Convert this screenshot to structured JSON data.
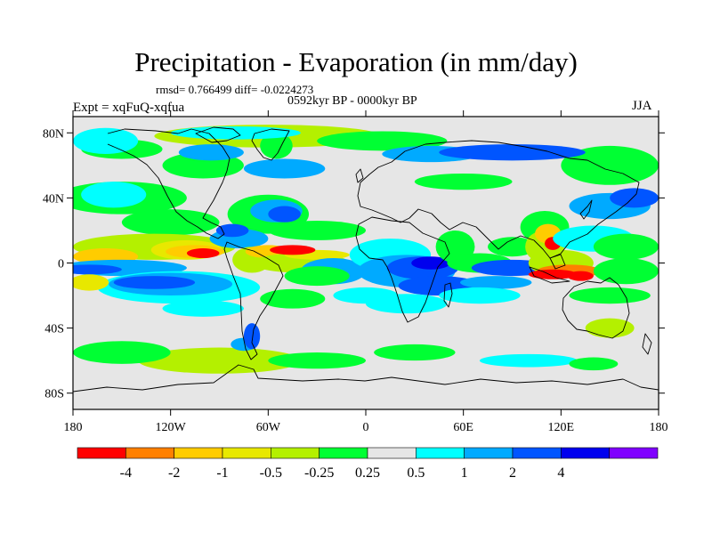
{
  "chart_data": {
    "type": "heatmap",
    "title": "Precipitation - Evaporation (in mm/day)",
    "stats_text": "rmsd= 0.766499 diff= -0.0224273",
    "period_text": "0592kyr BP - 0000kyr BP",
    "left_label": "Expt = xqFuQ-xqfua",
    "right_label": "JJA",
    "x_ticks": [
      "180",
      "120W",
      "60W",
      "0",
      "60E",
      "120E",
      "180"
    ],
    "x_tick_values": [
      -180,
      -120,
      -60,
      0,
      60,
      120,
      180
    ],
    "y_ticks": [
      "80N",
      "40N",
      "0",
      "40S",
      "80S"
    ],
    "y_tick_values": [
      80,
      40,
      0,
      -40,
      -80
    ],
    "xlim": [
      -180,
      180
    ],
    "ylim": [
      -90,
      90
    ],
    "colorbar": {
      "colors": [
        "#ff0000",
        "#ff8000",
        "#ffcc00",
        "#e8e800",
        "#b4f000",
        "#00ff33",
        "#e6e6e6",
        "#00ffff",
        "#00aaff",
        "#0055ff",
        "#0000ee",
        "#8000ff"
      ],
      "labels": [
        "-4",
        "-2",
        "-1",
        "-0.5",
        "-0.25",
        "0.25",
        "0.5",
        "1",
        "2",
        "4"
      ]
    },
    "regions": [
      {
        "lon": -60,
        "lat": 78,
        "rx": 70,
        "ry": 7,
        "c": 4
      },
      {
        "lon": 10,
        "lat": 75,
        "rx": 40,
        "ry": 6,
        "c": 5
      },
      {
        "lon": -150,
        "lat": 70,
        "rx": 25,
        "ry": 6,
        "c": 5
      },
      {
        "lon": -55,
        "lat": 72,
        "rx": 10,
        "ry": 8,
        "c": 5
      },
      {
        "lon": 150,
        "lat": 60,
        "rx": 30,
        "ry": 12,
        "c": 5
      },
      {
        "lon": -100,
        "lat": 60,
        "rx": 25,
        "ry": 8,
        "c": 5
      },
      {
        "lon": -160,
        "lat": 75,
        "rx": 20,
        "ry": 8,
        "c": 7
      },
      {
        "lon": -80,
        "lat": 80,
        "rx": 40,
        "ry": 4,
        "c": 7
      },
      {
        "lon": -50,
        "lat": 58,
        "rx": 25,
        "ry": 6,
        "c": 8
      },
      {
        "lon": 40,
        "lat": 67,
        "rx": 30,
        "ry": 5,
        "c": 8
      },
      {
        "lon": 90,
        "lat": 68,
        "rx": 45,
        "ry": 5,
        "c": 9
      },
      {
        "lon": -95,
        "lat": 68,
        "rx": 20,
        "ry": 5,
        "c": 8
      },
      {
        "lon": 60,
        "lat": 50,
        "rx": 30,
        "ry": 5,
        "c": 5
      },
      {
        "lon": -150,
        "lat": 40,
        "rx": 40,
        "ry": 10,
        "c": 5
      },
      {
        "lon": -120,
        "lat": 25,
        "rx": 30,
        "ry": 8,
        "c": 5
      },
      {
        "lon": -155,
        "lat": 42,
        "rx": 20,
        "ry": 8,
        "c": 7
      },
      {
        "lon": -60,
        "lat": 30,
        "rx": 25,
        "ry": 12,
        "c": 5
      },
      {
        "lon": -55,
        "lat": 32,
        "rx": 16,
        "ry": 7,
        "c": 8
      },
      {
        "lon": -50,
        "lat": 30,
        "rx": 10,
        "ry": 5,
        "c": 9
      },
      {
        "lon": -30,
        "lat": 20,
        "rx": 30,
        "ry": 6,
        "c": 5
      },
      {
        "lon": -130,
        "lat": 10,
        "rx": 50,
        "ry": 8,
        "c": 4
      },
      {
        "lon": -110,
        "lat": 8,
        "rx": 22,
        "ry": 6,
        "c": 3
      },
      {
        "lon": -105,
        "lat": 7,
        "rx": 18,
        "ry": 4,
        "c": 2
      },
      {
        "lon": -100,
        "lat": 6,
        "rx": 10,
        "ry": 3,
        "c": 0
      },
      {
        "lon": -160,
        "lat": 4,
        "rx": 20,
        "ry": 5,
        "c": 2
      },
      {
        "lon": -150,
        "lat": -3,
        "rx": 40,
        "ry": 5,
        "c": 8
      },
      {
        "lon": -170,
        "lat": -4,
        "rx": 20,
        "ry": 3,
        "c": 9
      },
      {
        "lon": -78,
        "lat": 15,
        "rx": 18,
        "ry": 6,
        "c": 8
      },
      {
        "lon": -82,
        "lat": 20,
        "rx": 10,
        "ry": 4,
        "c": 9
      },
      {
        "lon": -70,
        "lat": 2,
        "rx": 12,
        "ry": 8,
        "c": 4
      },
      {
        "lon": -60,
        "lat": 7,
        "rx": 14,
        "ry": 4,
        "c": 2
      },
      {
        "lon": -40,
        "lat": 0,
        "rx": 30,
        "ry": 6,
        "c": 4
      },
      {
        "lon": -30,
        "lat": 5,
        "rx": 20,
        "ry": 3,
        "c": 3
      },
      {
        "lon": -45,
        "lat": 8,
        "rx": 14,
        "ry": 3,
        "c": 0
      },
      {
        "lon": -20,
        "lat": -5,
        "rx": 20,
        "ry": 8,
        "c": 8
      },
      {
        "lon": -115,
        "lat": -15,
        "rx": 50,
        "ry": 10,
        "c": 7
      },
      {
        "lon": -120,
        "lat": -13,
        "rx": 38,
        "ry": 7,
        "c": 8
      },
      {
        "lon": -130,
        "lat": -12,
        "rx": 25,
        "ry": 4,
        "c": 9
      },
      {
        "lon": -170,
        "lat": -12,
        "rx": 12,
        "ry": 5,
        "c": 3
      },
      {
        "lon": -100,
        "lat": -28,
        "rx": 25,
        "ry": 5,
        "c": 7
      },
      {
        "lon": -45,
        "lat": -22,
        "rx": 20,
        "ry": 6,
        "c": 5
      },
      {
        "lon": -30,
        "lat": -8,
        "rx": 20,
        "ry": 6,
        "c": 5
      },
      {
        "lon": 15,
        "lat": 5,
        "rx": 25,
        "ry": 10,
        "c": 7
      },
      {
        "lon": 25,
        "lat": -5,
        "rx": 30,
        "ry": 10,
        "c": 8
      },
      {
        "lon": 35,
        "lat": -3,
        "rx": 22,
        "ry": 7,
        "c": 9
      },
      {
        "lon": 40,
        "lat": 0,
        "rx": 12,
        "ry": 4,
        "c": 10
      },
      {
        "lon": 45,
        "lat": -14,
        "rx": 25,
        "ry": 6,
        "c": 9
      },
      {
        "lon": 25,
        "lat": -25,
        "rx": 25,
        "ry": 6,
        "c": 7
      },
      {
        "lon": 0,
        "lat": -20,
        "rx": 20,
        "ry": 5,
        "c": 7
      },
      {
        "lon": 55,
        "lat": 10,
        "rx": 12,
        "ry": 10,
        "c": 5
      },
      {
        "lon": 70,
        "lat": 0,
        "rx": 20,
        "ry": 6,
        "c": 5
      },
      {
        "lon": 90,
        "lat": 10,
        "rx": 15,
        "ry": 6,
        "c": 5
      },
      {
        "lon": 90,
        "lat": -3,
        "rx": 25,
        "ry": 5,
        "c": 9
      },
      {
        "lon": 80,
        "lat": -12,
        "rx": 22,
        "ry": 4,
        "c": 8
      },
      {
        "lon": 70,
        "lat": -20,
        "rx": 25,
        "ry": 5,
        "c": 7
      },
      {
        "lon": 110,
        "lat": 22,
        "rx": 15,
        "ry": 10,
        "c": 5
      },
      {
        "lon": 110,
        "lat": 10,
        "rx": 12,
        "ry": 10,
        "c": 4
      },
      {
        "lon": 112,
        "lat": 18,
        "rx": 8,
        "ry": 6,
        "c": 2
      },
      {
        "lon": 115,
        "lat": 12,
        "rx": 5,
        "ry": 4,
        "c": 0
      },
      {
        "lon": 120,
        "lat": 0,
        "rx": 20,
        "ry": 8,
        "c": 4
      },
      {
        "lon": 125,
        "lat": -5,
        "rx": 20,
        "ry": 4,
        "c": 1
      },
      {
        "lon": 115,
        "lat": -7,
        "rx": 15,
        "ry": 3,
        "c": 0
      },
      {
        "lon": 132,
        "lat": -8,
        "rx": 8,
        "ry": 3,
        "c": 0
      },
      {
        "lon": 150,
        "lat": 35,
        "rx": 25,
        "ry": 8,
        "c": 8
      },
      {
        "lon": 165,
        "lat": 40,
        "rx": 15,
        "ry": 6,
        "c": 9
      },
      {
        "lon": 140,
        "lat": 15,
        "rx": 25,
        "ry": 8,
        "c": 7
      },
      {
        "lon": 160,
        "lat": 10,
        "rx": 20,
        "ry": 8,
        "c": 5
      },
      {
        "lon": 160,
        "lat": -5,
        "rx": 20,
        "ry": 8,
        "c": 5
      },
      {
        "lon": 150,
        "lat": -20,
        "rx": 25,
        "ry": 5,
        "c": 5
      },
      {
        "lon": 150,
        "lat": -40,
        "rx": 15,
        "ry": 6,
        "c": 4
      },
      {
        "lon": -90,
        "lat": -60,
        "rx": 50,
        "ry": 8,
        "c": 4
      },
      {
        "lon": -150,
        "lat": -55,
        "rx": 30,
        "ry": 7,
        "c": 5
      },
      {
        "lon": -30,
        "lat": -60,
        "rx": 30,
        "ry": 5,
        "c": 5
      },
      {
        "lon": -75,
        "lat": -50,
        "rx": 8,
        "ry": 4,
        "c": 8
      },
      {
        "lon": -70,
        "lat": -45,
        "rx": 5,
        "ry": 8,
        "c": 9
      },
      {
        "lon": 30,
        "lat": -55,
        "rx": 25,
        "ry": 5,
        "c": 5
      },
      {
        "lon": 100,
        "lat": -60,
        "rx": 30,
        "ry": 4,
        "c": 7
      },
      {
        "lon": 140,
        "lat": -62,
        "rx": 15,
        "ry": 4,
        "c": 5
      }
    ]
  }
}
